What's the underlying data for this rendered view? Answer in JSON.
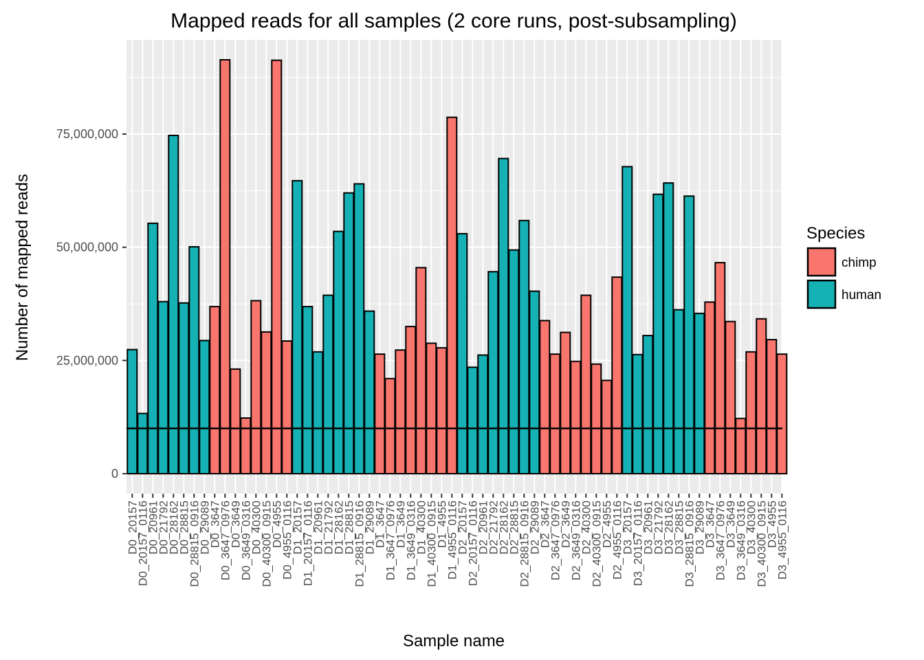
{
  "chart_data": {
    "type": "bar",
    "title": "Mapped reads for all samples  (2 core runs, post-subsampling)",
    "xlabel": "Sample name",
    "ylabel": "Number of mapped reads",
    "ylim": [
      0,
      92000000
    ],
    "y_ticks": [
      0,
      25000000,
      50000000,
      75000000
    ],
    "y_tick_labels": [
      "0",
      "25,000,000",
      "50,000,000",
      "75,000,000"
    ],
    "reference_line": 10000000,
    "grid": true,
    "legend": {
      "title": "Species",
      "placement": "right",
      "entries": [
        {
          "name": "chimp",
          "color": "#F8766D"
        },
        {
          "name": "human",
          "color": "#00BFC4"
        }
      ]
    },
    "colors": {
      "chimp": "#F8766D",
      "human": "#16B1B4",
      "panel": "#EBEBEB",
      "grid": "#FFFFFF"
    },
    "categories": [
      "D0_20157",
      "D0_20157_0116",
      "D0_20961",
      "D0_21792",
      "D0_28162",
      "D0_28815",
      "D0_28815_0916",
      "D0_29089",
      "D0_3647",
      "D0_3647_0976",
      "D0_3649",
      "D0_3649_0316",
      "D0_40300",
      "D0_40300_0915",
      "D0_4955",
      "D0_4955_0116",
      "D1_20157",
      "D1_20157_0116",
      "D1_20961",
      "D1_21792",
      "D1_28162",
      "D1_28815",
      "D1_28815_0916",
      "D1_29089",
      "D1_3647",
      "D1_3647_0976",
      "D1_3649",
      "D1_3649_0316",
      "D1_40300",
      "D1_40300_0915",
      "D1_4955",
      "D1_4955_0116",
      "D2_20157",
      "D2_20157_0116",
      "D2_20961",
      "D2_21792",
      "D2_28162",
      "D2_28815",
      "D2_28815_0916",
      "D2_29089",
      "D2_3647",
      "D2_3647_0976",
      "D2_3649",
      "D2_3649_0316",
      "D2_40300",
      "D2_40300_0915",
      "D2_4955",
      "D2_4955_0116",
      "D3_20157",
      "D3_20157_0116",
      "D3_20961",
      "D3_21792",
      "D3_28162",
      "D3_28815",
      "D3_28815_0916",
      "D3_29089",
      "D3_3647",
      "D3_3647_0976",
      "D3_3649",
      "D3_3649_0316",
      "D3_40300",
      "D3_40300_0915",
      "D3_4955",
      "D3_4955_0116"
    ],
    "species": [
      "human",
      "human",
      "human",
      "human",
      "human",
      "human",
      "human",
      "human",
      "chimp",
      "chimp",
      "chimp",
      "chimp",
      "chimp",
      "chimp",
      "chimp",
      "chimp",
      "human",
      "human",
      "human",
      "human",
      "human",
      "human",
      "human",
      "human",
      "chimp",
      "chimp",
      "chimp",
      "chimp",
      "chimp",
      "chimp",
      "chimp",
      "chimp",
      "human",
      "human",
      "human",
      "human",
      "human",
      "human",
      "human",
      "human",
      "chimp",
      "chimp",
      "chimp",
      "chimp",
      "chimp",
      "chimp",
      "chimp",
      "chimp",
      "human",
      "human",
      "human",
      "human",
      "human",
      "human",
      "human",
      "human",
      "chimp",
      "chimp",
      "chimp",
      "chimp",
      "chimp",
      "chimp",
      "chimp",
      "chimp"
    ],
    "values": [
      27400000,
      13300000,
      55300000,
      38000000,
      74700000,
      37700000,
      50100000,
      29400000,
      36900000,
      91400000,
      23100000,
      12300000,
      38200000,
      31300000,
      91300000,
      29300000,
      64700000,
      36900000,
      26900000,
      39400000,
      53500000,
      62000000,
      64000000,
      35900000,
      26400000,
      21000000,
      27300000,
      32500000,
      45500000,
      28800000,
      27800000,
      78700000,
      53000000,
      23500000,
      26200000,
      44600000,
      69600000,
      49400000,
      55900000,
      40300000,
      33800000,
      26400000,
      31200000,
      24800000,
      39400000,
      24200000,
      20600000,
      43400000,
      67800000,
      26300000,
      30500000,
      61700000,
      64200000,
      36200000,
      61300000,
      35400000,
      37900000,
      46600000,
      33600000,
      12200000,
      26900000,
      34200000,
      29600000,
      26400000
    ]
  }
}
